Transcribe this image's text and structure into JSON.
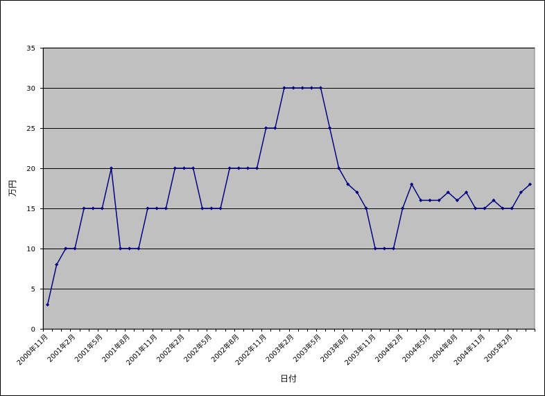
{
  "chart_data": {
    "type": "line",
    "title": "",
    "xlabel": "日付",
    "ylabel": "万円",
    "ylim": [
      0,
      35
    ],
    "yticks": [
      0,
      5,
      10,
      15,
      20,
      25,
      30,
      35
    ],
    "grid": true,
    "legend": "none",
    "x_tick_labels": [
      "2000年11月",
      "2001年2月",
      "2001年5月",
      "2001年8月",
      "2001年11月",
      "2002年2月",
      "2002年5月",
      "2002年8月",
      "2002年11月",
      "2003年2月",
      "2003年5月",
      "2003年8月",
      "2003年11月",
      "2004年2月",
      "2004年5月",
      "2004年8月",
      "2004年11月",
      "2005年2月"
    ],
    "series": [
      {
        "values": [
          3,
          8,
          10,
          10,
          15,
          15,
          15,
          20,
          10,
          10,
          10,
          15,
          15,
          15,
          20,
          20,
          20,
          15,
          15,
          15,
          20,
          20,
          20,
          20,
          25,
          25,
          30,
          30,
          30,
          30,
          30,
          25,
          20,
          18,
          17,
          15,
          10,
          10,
          10,
          15,
          18,
          16,
          16,
          16,
          17,
          16,
          17,
          15,
          15,
          16,
          15,
          15,
          17,
          18
        ],
        "color": "#000080"
      }
    ],
    "colors": {
      "plot_background": "#c0c0c0",
      "gridline": "#000000",
      "line": "#000080"
    }
  }
}
